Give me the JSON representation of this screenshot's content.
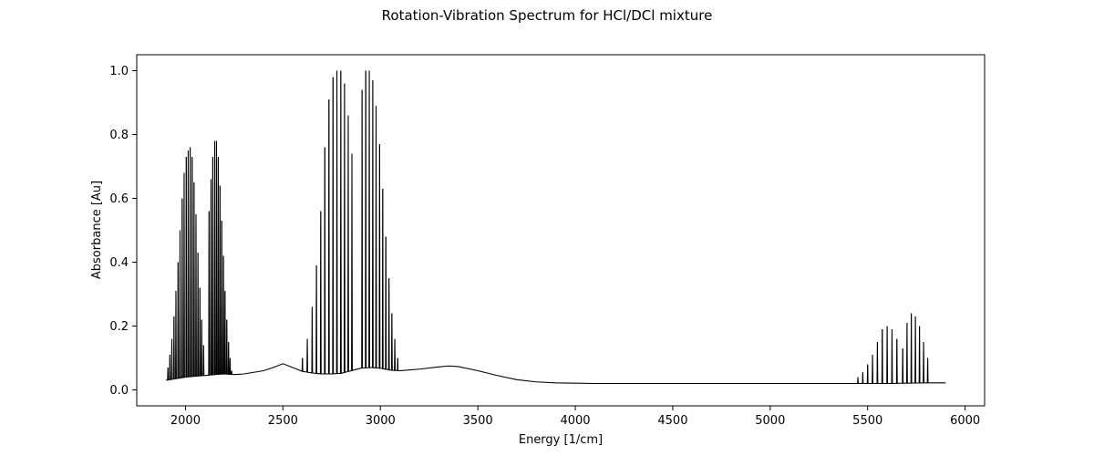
{
  "chart_data": {
    "type": "line",
    "title": "Rotation-Vibration Spectrum for HCl/DCl mixture",
    "xlabel": "Energy [1/cm]",
    "ylabel": "Absorbance [Au]",
    "xlim": [
      1750,
      6100
    ],
    "ylim": [
      -0.05,
      1.05
    ],
    "xticks": [
      2000,
      2500,
      3000,
      3500,
      4000,
      4500,
      5000,
      5500,
      6000
    ],
    "yticks": [
      0.0,
      0.2,
      0.4,
      0.6,
      0.8,
      1.0
    ],
    "xtick_labels": [
      "2000",
      "2500",
      "3000",
      "3500",
      "4000",
      "4500",
      "5000",
      "5500",
      "6000"
    ],
    "ytick_labels": [
      "0.0",
      "0.2",
      "0.4",
      "0.6",
      "0.8",
      "1.0"
    ],
    "grid": false,
    "line_color": "#000000",
    "baseline": {
      "x": [
        1900,
        1950,
        2000,
        2050,
        2100,
        2150,
        2200,
        2250,
        2300,
        2350,
        2400,
        2450,
        2500,
        2550,
        2600,
        2650,
        2700,
        2750,
        2800,
        2850,
        2900,
        2950,
        3000,
        3050,
        3100,
        3200,
        3300,
        3350,
        3400,
        3500,
        3600,
        3700,
        3800,
        3900,
        4000,
        4100,
        4200,
        4300,
        4500,
        5000,
        5300,
        5500,
        5600,
        5700,
        5800,
        5900
      ],
      "y": [
        0.03,
        0.035,
        0.04,
        0.043,
        0.045,
        0.048,
        0.05,
        0.048,
        0.05,
        0.055,
        0.06,
        0.07,
        0.082,
        0.07,
        0.058,
        0.053,
        0.05,
        0.05,
        0.052,
        0.06,
        0.068,
        0.07,
        0.068,
        0.062,
        0.06,
        0.065,
        0.072,
        0.075,
        0.073,
        0.06,
        0.045,
        0.032,
        0.025,
        0.022,
        0.021,
        0.02,
        0.02,
        0.02,
        0.02,
        0.02,
        0.02,
        0.02,
        0.02,
        0.021,
        0.022,
        0.022
      ]
    },
    "peaks": {
      "x": [
        1910,
        1920,
        1930,
        1941,
        1951,
        1962,
        1972,
        1983,
        1993,
        2004,
        2014,
        2024,
        2034,
        2044,
        2054,
        2064,
        2074,
        2083,
        2093,
        2121,
        2131,
        2140,
        2150,
        2159,
        2168,
        2177,
        2186,
        2195,
        2203,
        2212,
        2221,
        2229,
        2237,
        2600,
        2625,
        2650,
        2672,
        2694,
        2715,
        2736,
        2757,
        2777,
        2797,
        2816,
        2835,
        2854,
        2906,
        2925,
        2943,
        2961,
        2978,
        2996,
        3012,
        3028,
        3044,
        3059,
        3074,
        3089,
        3103,
        5450,
        5475,
        5500,
        5525,
        5550,
        5575,
        5600,
        5625,
        5650,
        5680,
        5702,
        5724,
        5745,
        5766,
        5787,
        5808
      ],
      "y": [
        0.07,
        0.11,
        0.16,
        0.23,
        0.31,
        0.4,
        0.5,
        0.6,
        0.68,
        0.73,
        0.75,
        0.76,
        0.73,
        0.65,
        0.55,
        0.43,
        0.32,
        0.22,
        0.14,
        0.56,
        0.66,
        0.73,
        0.78,
        0.78,
        0.73,
        0.64,
        0.53,
        0.42,
        0.31,
        0.22,
        0.15,
        0.1,
        0.06,
        0.1,
        0.16,
        0.26,
        0.39,
        0.56,
        0.76,
        0.91,
        0.98,
        1.0,
        1.0,
        0.96,
        0.86,
        0.74,
        0.94,
        1.0,
        1.0,
        0.97,
        0.89,
        0.77,
        0.63,
        0.48,
        0.35,
        0.24,
        0.16,
        0.1,
        0.06,
        0.04,
        0.055,
        0.08,
        0.11,
        0.15,
        0.19,
        0.2,
        0.19,
        0.16,
        0.13,
        0.21,
        0.24,
        0.23,
        0.2,
        0.15,
        0.1
      ]
    }
  }
}
